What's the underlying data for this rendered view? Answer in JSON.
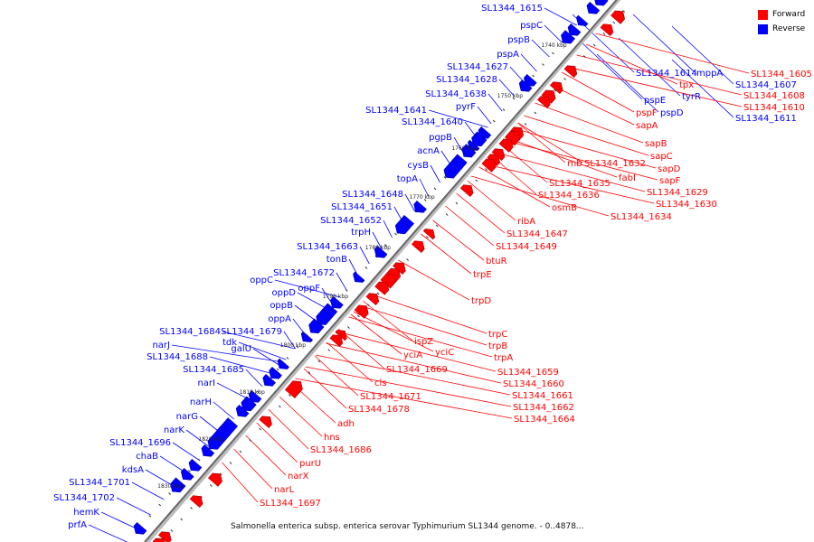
{
  "legend": {
    "items": [
      {
        "label": "Forward",
        "color": "#ff0000"
      },
      {
        "label": "Reverse",
        "color": "#0000ff"
      }
    ]
  },
  "caption": "Salmonella enterica subsp. enterica serovar Typhimurium SL1344 genome. - 0..4878...",
  "colors": {
    "forward": "#ff0000",
    "reverse": "#0000ff",
    "backbone": "#666666"
  },
  "scale_labels": [
    "1740 kbp",
    "1750 kbp",
    "1760 kbp",
    "1770 kbp",
    "1780 kbp",
    "1790 kbp",
    "1800 kbp",
    "1810 kbp",
    "1820 kbp",
    "1830 kbp"
  ],
  "reverse_labels": [
    "SL1344_1615",
    "pspC",
    "pspB",
    "pspA",
    "SL1344_1627",
    "SL1344_1628",
    "SL1344_1638",
    "pyrF",
    "SL1344_1641",
    "SL1344_1640",
    "pgpB",
    "acnA",
    "cysB",
    "topA",
    "SL1344_1648",
    "SL1344_1651",
    "SL1344_1652",
    "trpH",
    "SL1344_1663",
    "tonB",
    "SL1344_1672",
    "oppC",
    "oppF",
    "oppD",
    "oppB",
    "oppA",
    "SL1344_1684",
    "SL1344_1679",
    "narJ",
    "galU",
    "tdk",
    "SL1344_1688",
    "SL1344_1685",
    "narI",
    "narH",
    "narG",
    "narK",
    "SL1344_1696",
    "chaB",
    "kdsA",
    "SL1344_1701",
    "SL1344_1702",
    "hemK",
    "prfA"
  ],
  "reverse_labels_upper": [
    "SL1344_1614",
    "mppA",
    "SL1344_1607",
    "tyrR",
    "SL1344_1611",
    "pspE",
    "pspD"
  ],
  "forward_labels": [
    "SL1344_1605",
    "tpx",
    "SL1344_1608",
    "SL1344_1610",
    "pspF",
    "sapA",
    "sapB",
    "sapC",
    "rnb",
    "SL1344_1632",
    "sapD",
    "fabI",
    "sapF",
    "SL1344_1635",
    "SL1344_1629",
    "SL1344_1636",
    "SL1344_1630",
    "osmB",
    "SL1344_1634",
    "ribA",
    "SL1344_1647",
    "SL1344_1649",
    "btuR",
    "trpE",
    "trpD",
    "trpC",
    "trpB",
    "ispZ",
    "yciA",
    "yciC",
    "trpA",
    "SL1344_1669",
    "SL1344_1659",
    "cls",
    "SL1344_1660",
    "SL1344_1671",
    "SL1344_1661",
    "SL1344_1662",
    "SL1344_1678",
    "SL1344_1664",
    "adh",
    "hns",
    "SL1344_1686",
    "purU",
    "narX",
    "narL",
    "SL1344_1697"
  ]
}
